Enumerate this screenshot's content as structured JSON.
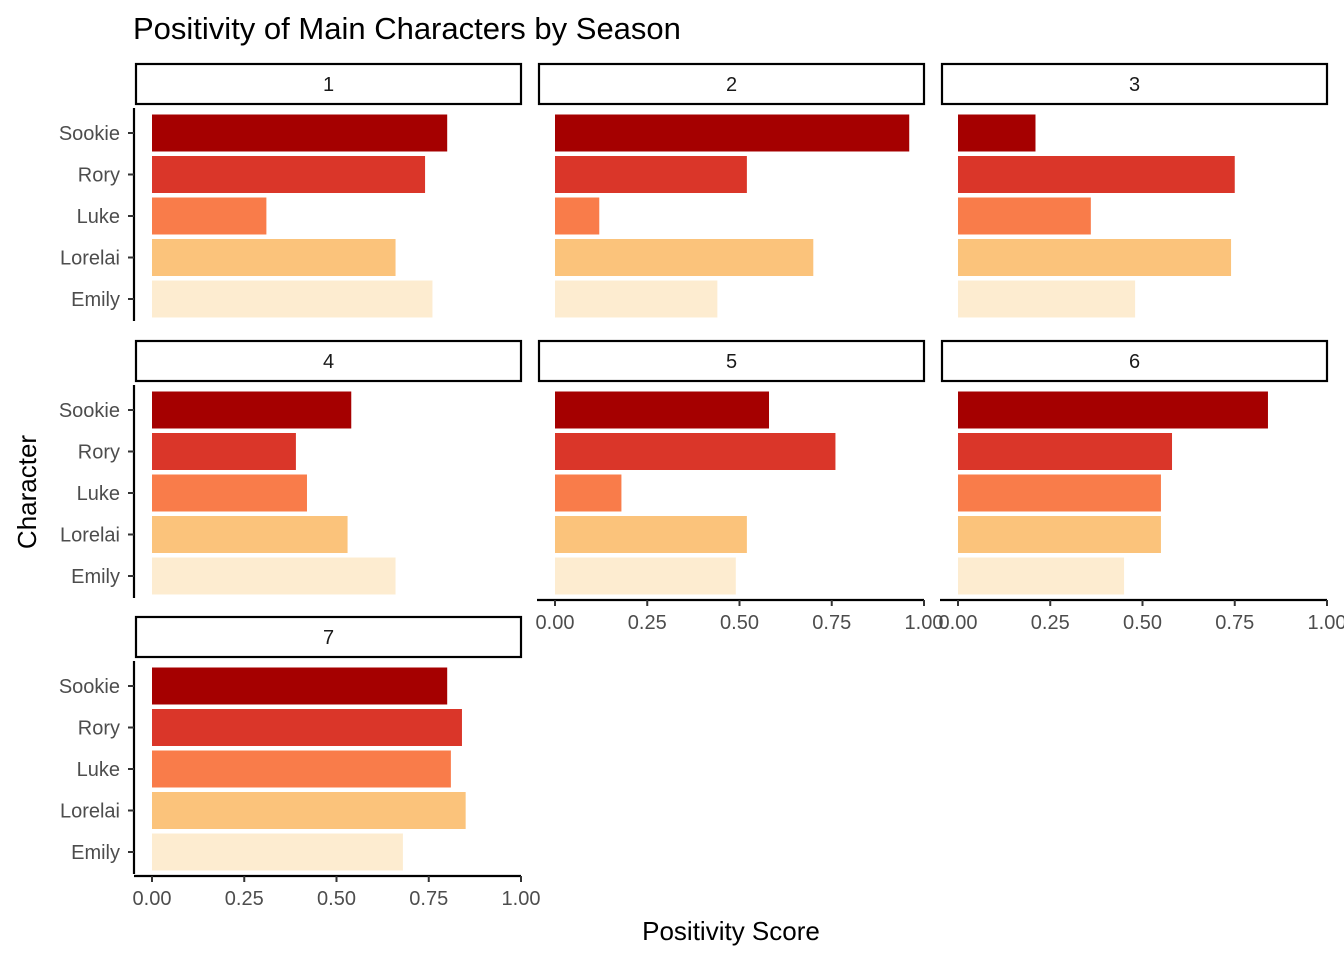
{
  "chart_data": {
    "type": "bar",
    "orientation": "horizontal",
    "title": "Positivity of Main Characters by Season",
    "xlabel": "Positivity Score",
    "ylabel": "Character",
    "xlim": [
      0,
      1
    ],
    "x_ticks": [
      "0.00",
      "0.25",
      "0.50",
      "0.75",
      "1.00"
    ],
    "categories": [
      "Sookie",
      "Rory",
      "Luke",
      "Lorelai",
      "Emily"
    ],
    "category_colors": {
      "Sookie": "#a50000",
      "Rory": "#da3629",
      "Luke": "#f97c4a",
      "Lorelai": "#fbc37b",
      "Emily": "#fdecd0"
    },
    "grid": false,
    "legend": "none",
    "panels": [
      {
        "label": "1",
        "values": {
          "Sookie": 0.8,
          "Rory": 0.74,
          "Luke": 0.31,
          "Lorelai": 0.66,
          "Emily": 0.76
        }
      },
      {
        "label": "2",
        "values": {
          "Sookie": 0.96,
          "Rory": 0.52,
          "Luke": 0.12,
          "Lorelai": 0.7,
          "Emily": 0.44
        }
      },
      {
        "label": "3",
        "values": {
          "Sookie": 0.21,
          "Rory": 0.75,
          "Luke": 0.36,
          "Lorelai": 0.74,
          "Emily": 0.48
        }
      },
      {
        "label": "4",
        "values": {
          "Sookie": 0.54,
          "Rory": 0.39,
          "Luke": 0.42,
          "Lorelai": 0.53,
          "Emily": 0.66
        }
      },
      {
        "label": "5",
        "values": {
          "Sookie": 0.58,
          "Rory": 0.76,
          "Luke": 0.18,
          "Lorelai": 0.52,
          "Emily": 0.49
        }
      },
      {
        "label": "6",
        "values": {
          "Sookie": 0.84,
          "Rory": 0.58,
          "Luke": 0.55,
          "Lorelai": 0.55,
          "Emily": 0.45
        }
      },
      {
        "label": "7",
        "values": {
          "Sookie": 0.8,
          "Rory": 0.84,
          "Luke": 0.81,
          "Lorelai": 0.85,
          "Emily": 0.68
        }
      }
    ]
  }
}
